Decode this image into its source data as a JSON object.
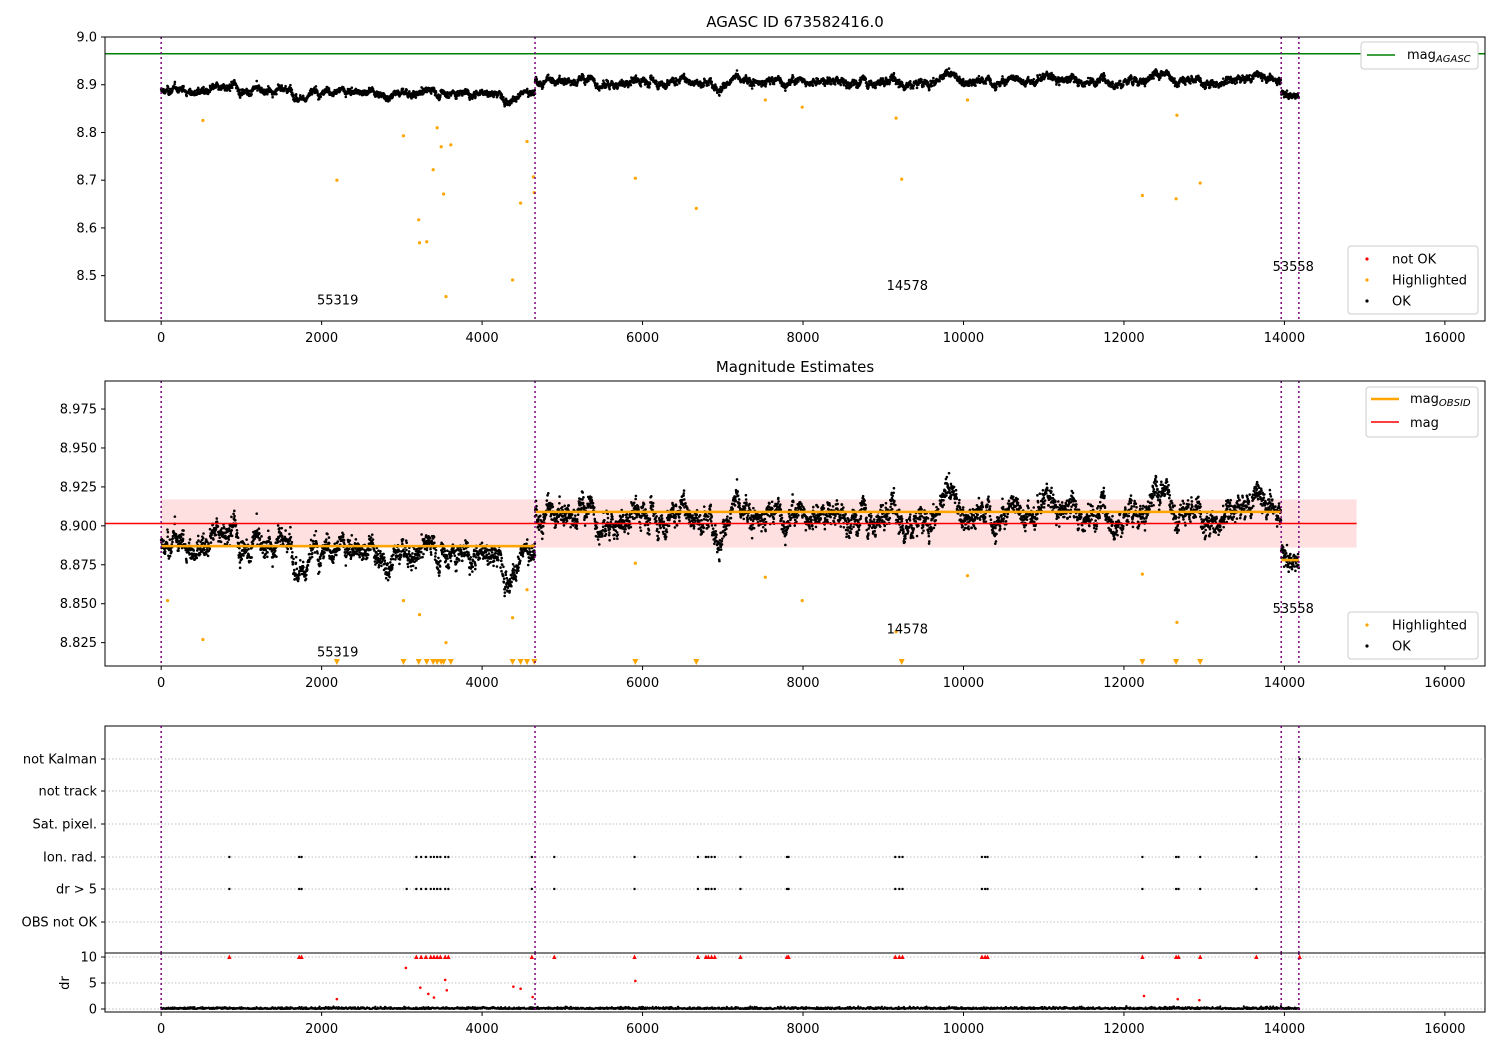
{
  "chart_data": [
    {
      "type": "scatter",
      "title": "AGASC ID 673582416.0",
      "xlim": [
        -700,
        16500
      ],
      "ylim": [
        8.405,
        9.0
      ],
      "xticks": [
        0,
        2000,
        4000,
        6000,
        8000,
        10000,
        12000,
        14000,
        16000
      ],
      "yticks": [
        8.5,
        8.6,
        8.7,
        8.8,
        8.9,
        9.0
      ],
      "ytick_labels": [
        "8.5",
        "8.6",
        "8.7",
        "8.8",
        "8.9",
        "9.0"
      ],
      "reference_line": {
        "name": "mag_AGASC",
        "y": 8.965,
        "color": "#008000"
      },
      "obsid_boundaries": [
        0,
        4660,
        13960,
        14180
      ],
      "obsid_labels": [
        {
          "text": "55319",
          "x": 2200,
          "y": 8.44
        },
        {
          "text": "14578",
          "x": 9300,
          "y": 8.47
        },
        {
          "text": "53558",
          "x": 14110,
          "y": 8.51
        }
      ],
      "segments": [
        {
          "x_start": 0,
          "x_end": 4660,
          "mean": 8.886,
          "spread": 0.012,
          "bump": 0.0
        },
        {
          "x_start": 4660,
          "x_end": 13960,
          "mean": 8.909,
          "spread": 0.012,
          "bump": 0.0
        },
        {
          "x_start": 13960,
          "x_end": 14180,
          "mean": 8.878,
          "spread": 0.012,
          "bump": 0.0
        }
      ],
      "highlighted": [
        {
          "x": 520,
          "y": 8.825
        },
        {
          "x": 2190,
          "y": 8.7
        },
        {
          "x": 3020,
          "y": 8.793
        },
        {
          "x": 3210,
          "y": 8.617
        },
        {
          "x": 3220,
          "y": 8.569
        },
        {
          "x": 3310,
          "y": 8.571
        },
        {
          "x": 3390,
          "y": 8.722
        },
        {
          "x": 3440,
          "y": 8.81
        },
        {
          "x": 3490,
          "y": 8.77
        },
        {
          "x": 3520,
          "y": 8.671
        },
        {
          "x": 3550,
          "y": 8.456
        },
        {
          "x": 3610,
          "y": 8.774
        },
        {
          "x": 4380,
          "y": 8.491
        },
        {
          "x": 4480,
          "y": 8.652
        },
        {
          "x": 4560,
          "y": 8.781
        },
        {
          "x": 4640,
          "y": 8.707
        },
        {
          "x": 4650,
          "y": 8.674
        },
        {
          "x": 5910,
          "y": 8.704
        },
        {
          "x": 6670,
          "y": 8.641
        },
        {
          "x": 7530,
          "y": 8.868
        },
        {
          "x": 7990,
          "y": 8.853
        },
        {
          "x": 9160,
          "y": 8.83
        },
        {
          "x": 9230,
          "y": 8.702
        },
        {
          "x": 10050,
          "y": 8.868
        },
        {
          "x": 12230,
          "y": 8.668
        },
        {
          "x": 12650,
          "y": 8.661
        },
        {
          "x": 12660,
          "y": 8.836
        },
        {
          "x": 12950,
          "y": 8.694
        }
      ],
      "legend": [
        {
          "name": "not OK",
          "color": "#ff0000"
        },
        {
          "name": "Highlighted",
          "color": "#ffa500"
        },
        {
          "name": "OK",
          "color": "#000000"
        }
      ]
    },
    {
      "type": "scatter",
      "title": "Magnitude Estimates",
      "xlim": [
        -700,
        16500
      ],
      "ylim": [
        8.81,
        8.993
      ],
      "xticks": [
        0,
        2000,
        4000,
        6000,
        8000,
        10000,
        12000,
        14000,
        16000
      ],
      "yticks": [
        8.825,
        8.85,
        8.875,
        8.9,
        8.925,
        8.95,
        8.975
      ],
      "ytick_labels": [
        "8.825",
        "8.850",
        "8.875",
        "8.900",
        "8.925",
        "8.950",
        "8.975"
      ],
      "mag": {
        "name": "mag",
        "y": 8.9015,
        "band": [
          8.886,
          8.917
        ],
        "x_end": 14900,
        "color": "#ff0000"
      },
      "mag_obsid": [
        {
          "x_start": 0,
          "x_end": 4660,
          "y": 8.887
        },
        {
          "x_start": 4660,
          "x_end": 13960,
          "y": 8.909
        },
        {
          "x_start": 13960,
          "x_end": 14180,
          "y": 8.878
        }
      ],
      "obsid_boundaries": [
        0,
        4660,
        13960,
        14180
      ],
      "obsid_labels": [
        {
          "text": "55319",
          "x": 2200,
          "y": 8.816
        },
        {
          "text": "14578",
          "x": 9300,
          "y": 8.831
        },
        {
          "text": "53558",
          "x": 14110,
          "y": 8.844
        }
      ],
      "highlighted": [
        {
          "x": 80,
          "y": 8.852
        },
        {
          "x": 520,
          "y": 8.827
        },
        {
          "x": 3020,
          "y": 8.852
        },
        {
          "x": 3220,
          "y": 8.843
        },
        {
          "x": 3550,
          "y": 8.825
        },
        {
          "x": 4380,
          "y": 8.841
        },
        {
          "x": 4560,
          "y": 8.859
        },
        {
          "x": 5910,
          "y": 8.876
        },
        {
          "x": 7530,
          "y": 8.867
        },
        {
          "x": 7990,
          "y": 8.852
        },
        {
          "x": 9160,
          "y": 8.832
        },
        {
          "x": 10050,
          "y": 8.868
        },
        {
          "x": 12230,
          "y": 8.869
        },
        {
          "x": 12660,
          "y": 8.838
        }
      ],
      "clipped_highlighted_x": [
        2190,
        3020,
        3210,
        3310,
        3390,
        3440,
        3490,
        3520,
        3610,
        4380,
        4480,
        4560,
        4650,
        5910,
        6670,
        9230,
        12230,
        12650,
        12950
      ],
      "legend": [
        {
          "name": "mag_OBSID",
          "color": "#ffa500"
        },
        {
          "name": "mag",
          "color": "#ff0000"
        }
      ],
      "legend2": [
        {
          "name": "Highlighted",
          "color": "#ffa500"
        },
        {
          "name": "OK",
          "color": "#000000"
        }
      ]
    },
    {
      "type": "scatter",
      "xlim": [
        -700,
        16500
      ],
      "xticks": [
        0,
        2000,
        4000,
        6000,
        8000,
        10000,
        12000,
        14000,
        16000
      ],
      "flag_rows": [
        "not Kalman",
        "not track",
        "Sat. pixel.",
        "Ion. rad.",
        "dr > 5",
        "OBS not OK"
      ],
      "flag_events_x": [
        850,
        1720,
        1750,
        3180,
        3240,
        3300,
        3360,
        3400,
        3440,
        3480,
        3540,
        3580,
        4620,
        4900,
        5900,
        6690,
        6790,
        6820,
        6860,
        6900,
        7220,
        7800,
        7820,
        9150,
        9200,
        9240,
        10230,
        10270,
        10300,
        12230,
        12650,
        12680,
        12950,
        13650
      ],
      "dr_yticks": [
        0,
        5,
        10
      ],
      "dr_ylim": [
        0,
        10.2
      ],
      "dr_ylabel": "dr",
      "dr_scatter": [
        {
          "x": 2190,
          "y": 1.9
        },
        {
          "x": 3050,
          "y": 7.9
        },
        {
          "x": 3230,
          "y": 4.1
        },
        {
          "x": 3330,
          "y": 2.9
        },
        {
          "x": 3400,
          "y": 2.2
        },
        {
          "x": 3540,
          "y": 5.6
        },
        {
          "x": 3560,
          "y": 3.6
        },
        {
          "x": 4390,
          "y": 4.3
        },
        {
          "x": 4480,
          "y": 3.9
        },
        {
          "x": 4630,
          "y": 2.3
        },
        {
          "x": 5910,
          "y": 5.4
        },
        {
          "x": 12250,
          "y": 2.5
        },
        {
          "x": 12670,
          "y": 1.9
        },
        {
          "x": 12940,
          "y": 1.7
        }
      ],
      "dr_capped_x": [
        850,
        1720,
        1750,
        3180,
        3240,
        3300,
        3360,
        3400,
        3440,
        3480,
        3540,
        3580,
        4620,
        4900,
        5900,
        6690,
        6790,
        6820,
        6860,
        6900,
        7220,
        7800,
        7820,
        9150,
        9200,
        9240,
        10230,
        10270,
        10300,
        12230,
        12650,
        12680,
        12950,
        13650,
        14190
      ]
    }
  ]
}
